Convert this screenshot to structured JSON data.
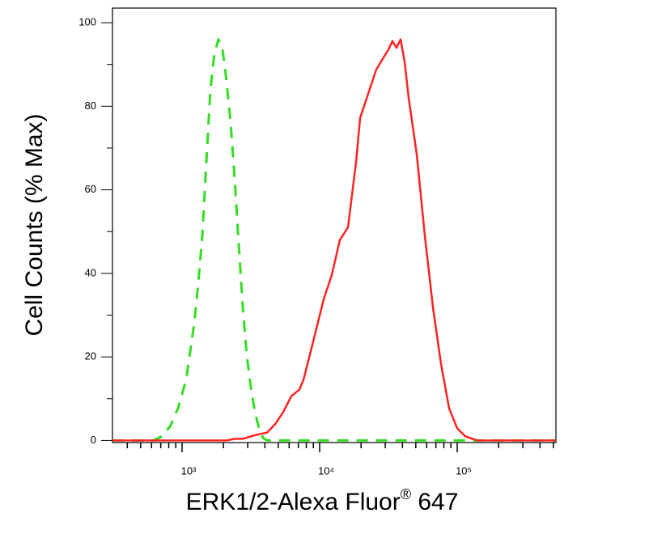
{
  "chart_data": {
    "type": "line",
    "x_label": "ERK1/2-Alexa Fluor® 647",
    "y_label": "Cell Counts (% Max)",
    "xscale": "log",
    "xlim": [
      312,
      522000
    ],
    "ylim": [
      -0.5,
      103.5
    ],
    "xticks": [
      {
        "value": 1000,
        "label": "10³"
      },
      {
        "value": 10000,
        "label": "10⁴"
      },
      {
        "value": 100000,
        "label": "10⁵"
      }
    ],
    "xminor_ticks": [
      400,
      500,
      600,
      700,
      800,
      900,
      2000,
      3000,
      4000,
      5000,
      6000,
      7000,
      8000,
      9000,
      20000,
      30000,
      40000,
      50000,
      60000,
      70000,
      80000,
      90000,
      200000,
      300000,
      400000,
      500000
    ],
    "yticks": [
      0,
      20,
      40,
      60,
      80,
      100
    ],
    "yminor_ticks": [
      10,
      30,
      50,
      70,
      90
    ],
    "series": [
      {
        "color": "#33dd22",
        "dash": true,
        "x": [
          312,
          622,
          713,
          816,
          934,
          1070,
          1225,
          1311,
          1403,
          1501,
          1606,
          1719,
          1840,
          1969,
          2107,
          2255,
          2413,
          2582,
          2763,
          2957,
          3165,
          3387,
          3624,
          3878,
          4150,
          520000
        ],
        "values": [
          0,
          0,
          1,
          3.3,
          7.7,
          14.5,
          28,
          37.6,
          49,
          66.6,
          84,
          92.7,
          96,
          93.6,
          85.9,
          76,
          62.7,
          47,
          31.9,
          20.3,
          12.5,
          6.8,
          2.9,
          0.6,
          0,
          0
        ]
      },
      {
        "color": "#ff2222",
        "dash": false,
        "x": [
          312,
          2107,
          2413,
          2763,
          3165,
          3624,
          4150,
          4745,
          5433,
          6222,
          7125,
          7626,
          8160,
          9346,
          10700,
          12250,
          14030,
          16060,
          18400,
          19690,
          22550,
          25820,
          29560,
          31620,
          33840,
          36220,
          38750,
          41480,
          44380,
          50820,
          58190,
          66630,
          76260,
          87300,
          100000,
          114600,
          140300,
          520000
        ],
        "values": [
          0,
          0,
          0.4,
          0.4,
          1,
          1.5,
          1.9,
          3.9,
          6.8,
          10.6,
          12.2,
          14.5,
          18.3,
          26,
          33.8,
          39.6,
          48,
          51,
          66.6,
          77.2,
          83,
          88.8,
          92,
          93.6,
          95.6,
          94,
          96,
          90.7,
          82,
          68.5,
          49,
          31.9,
          18.3,
          7.7,
          2.9,
          1,
          0,
          0
        ]
      }
    ]
  }
}
